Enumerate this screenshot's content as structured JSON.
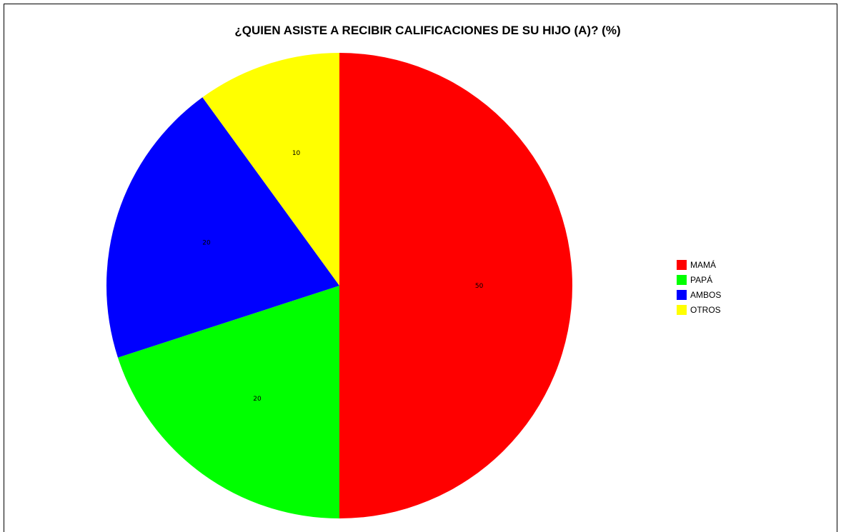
{
  "chart_data": {
    "type": "pie",
    "title": "¿QUIEN ASISTE A RECIBIR CALIFICACIONES DE SU HIJO (A)? (%)",
    "categories": [
      "MAMÁ",
      "PAPÁ",
      "AMBOS",
      "OTROS"
    ],
    "values": [
      50,
      20,
      20,
      10
    ],
    "value_labels": [
      "50",
      "20",
      "20",
      "10"
    ],
    "colors": [
      "#ff0000",
      "#00ff00",
      "#0000ff",
      "#ffff00"
    ],
    "legend": {
      "position": "right",
      "items": [
        {
          "label": "MAMÁ",
          "color": "#ff0000"
        },
        {
          "label": "PAPÁ",
          "color": "#00ff00"
        },
        {
          "label": "AMBOS",
          "color": "#0000ff"
        },
        {
          "label": "OTROS",
          "color": "#ffff00"
        }
      ]
    }
  }
}
